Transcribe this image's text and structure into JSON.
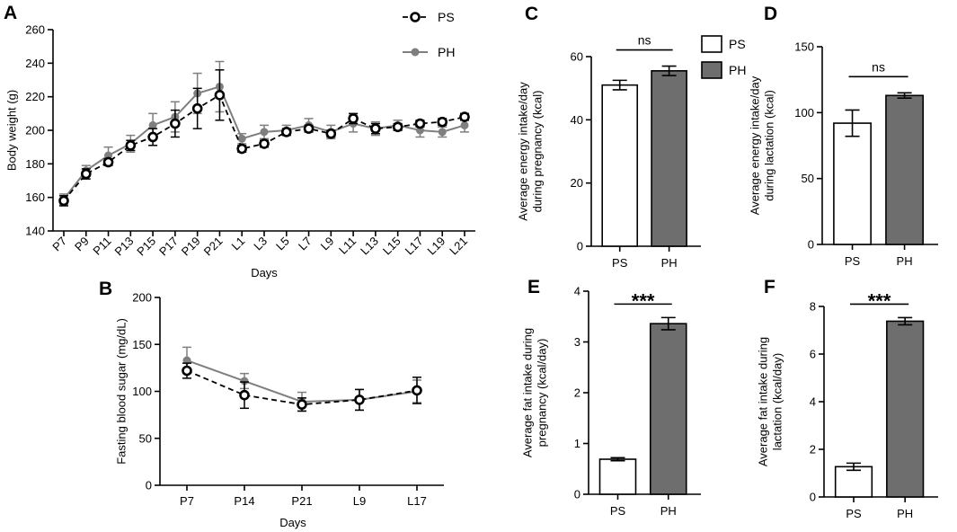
{
  "colors": {
    "ps": "#000000",
    "ph": "#7f7f7f",
    "ph_bar": "#6e6e6e",
    "ps_bar": "#ffffff"
  },
  "chart_data": [
    {
      "panel": "A",
      "type": "line",
      "xlabel": "Days",
      "ylabel": "Body weight (g)",
      "categories": [
        "P7",
        "P9",
        "P11",
        "P13",
        "P15",
        "P17",
        "P19",
        "P21",
        "L1",
        "L3",
        "L5",
        "L7",
        "L9",
        "L11",
        "L13",
        "L15",
        "L17",
        "L19",
        "L21"
      ],
      "ylim": [
        140,
        260
      ],
      "yticks": [
        140,
        160,
        180,
        200,
        220,
        240,
        260
      ],
      "legend": [
        "PS",
        "PH"
      ],
      "legend_position": "top-right",
      "series": [
        {
          "name": "PS",
          "style": "dashed-open-circle",
          "values": [
            158,
            174,
            181,
            191,
            196,
            204,
            213,
            221,
            189,
            192,
            199,
            201,
            198,
            207,
            201,
            202,
            204,
            205,
            208
          ],
          "errors": [
            3,
            3,
            2,
            3,
            5,
            8,
            12,
            15,
            2,
            2,
            2,
            2,
            2,
            3,
            3,
            2,
            2,
            2,
            2
          ]
        },
        {
          "name": "PH",
          "style": "solid-filled-circle",
          "values": [
            159,
            176,
            185,
            192,
            203,
            208,
            222,
            226,
            195,
            199,
            200,
            203,
            199,
            204,
            201,
            203,
            200,
            199,
            203
          ],
          "errors": [
            3,
            3,
            5,
            5,
            7,
            9,
            12,
            15,
            3,
            4,
            3,
            4,
            4,
            5,
            4,
            3,
            4,
            3,
            4
          ]
        }
      ]
    },
    {
      "panel": "B",
      "type": "line",
      "xlabel": "Days",
      "ylabel": "Fasting blood sugar (mg/dL)",
      "categories": [
        "P7",
        "P14",
        "P21",
        "L9",
        "L17"
      ],
      "ylim": [
        0,
        200
      ],
      "yticks": [
        0,
        50,
        100,
        150,
        200
      ],
      "series": [
        {
          "name": "PS",
          "style": "dashed-open-circle",
          "values": [
            122,
            96,
            86,
            91,
            101
          ],
          "errors": [
            8,
            14,
            7,
            11,
            14
          ]
        },
        {
          "name": "PH",
          "style": "solid-filled-circle",
          "values": [
            133,
            111,
            89,
            91,
            100
          ],
          "errors": [
            14,
            8,
            10,
            11,
            12
          ]
        }
      ]
    },
    {
      "panel": "C",
      "type": "bar",
      "categories": [
        "PS",
        "PH"
      ],
      "values": [
        51,
        55.5
      ],
      "errors": [
        1.5,
        1.5
      ],
      "ylabel_lines": [
        "Average energy intake/day",
        "during pregnancy (kcal)"
      ],
      "ylim": [
        0,
        60
      ],
      "yticks": [
        0,
        20,
        40,
        60
      ],
      "significance": "ns",
      "legend": [
        "PS",
        "PH"
      ]
    },
    {
      "panel": "D",
      "type": "bar",
      "categories": [
        "PS",
        "PH"
      ],
      "values": [
        92,
        113
      ],
      "errors": [
        10,
        2
      ],
      "ylabel_lines": [
        "Average energy intake/day",
        "during lactation (kcal)"
      ],
      "ylim": [
        0,
        150
      ],
      "yticks": [
        0,
        50,
        100,
        150
      ],
      "significance": "ns"
    },
    {
      "panel": "E",
      "type": "bar",
      "categories": [
        "PS",
        "PH"
      ],
      "values": [
        0.69,
        3.36
      ],
      "errors": [
        0.03,
        0.12
      ],
      "ylabel_lines": [
        "Average fat intake during",
        "pregnancy (kcal/day)"
      ],
      "ylim": [
        0,
        4
      ],
      "yticks": [
        0,
        1,
        2,
        3,
        4
      ],
      "significance": "***"
    },
    {
      "panel": "F",
      "type": "bar",
      "categories": [
        "PS",
        "PH"
      ],
      "values": [
        1.27,
        7.38
      ],
      "errors": [
        0.15,
        0.15
      ],
      "ylabel_lines": [
        "Average fat intake during",
        "lactation (kcal/day)"
      ],
      "ylim": [
        0,
        8
      ],
      "yticks": [
        0,
        2,
        4,
        6,
        8
      ],
      "significance": "***"
    }
  ]
}
